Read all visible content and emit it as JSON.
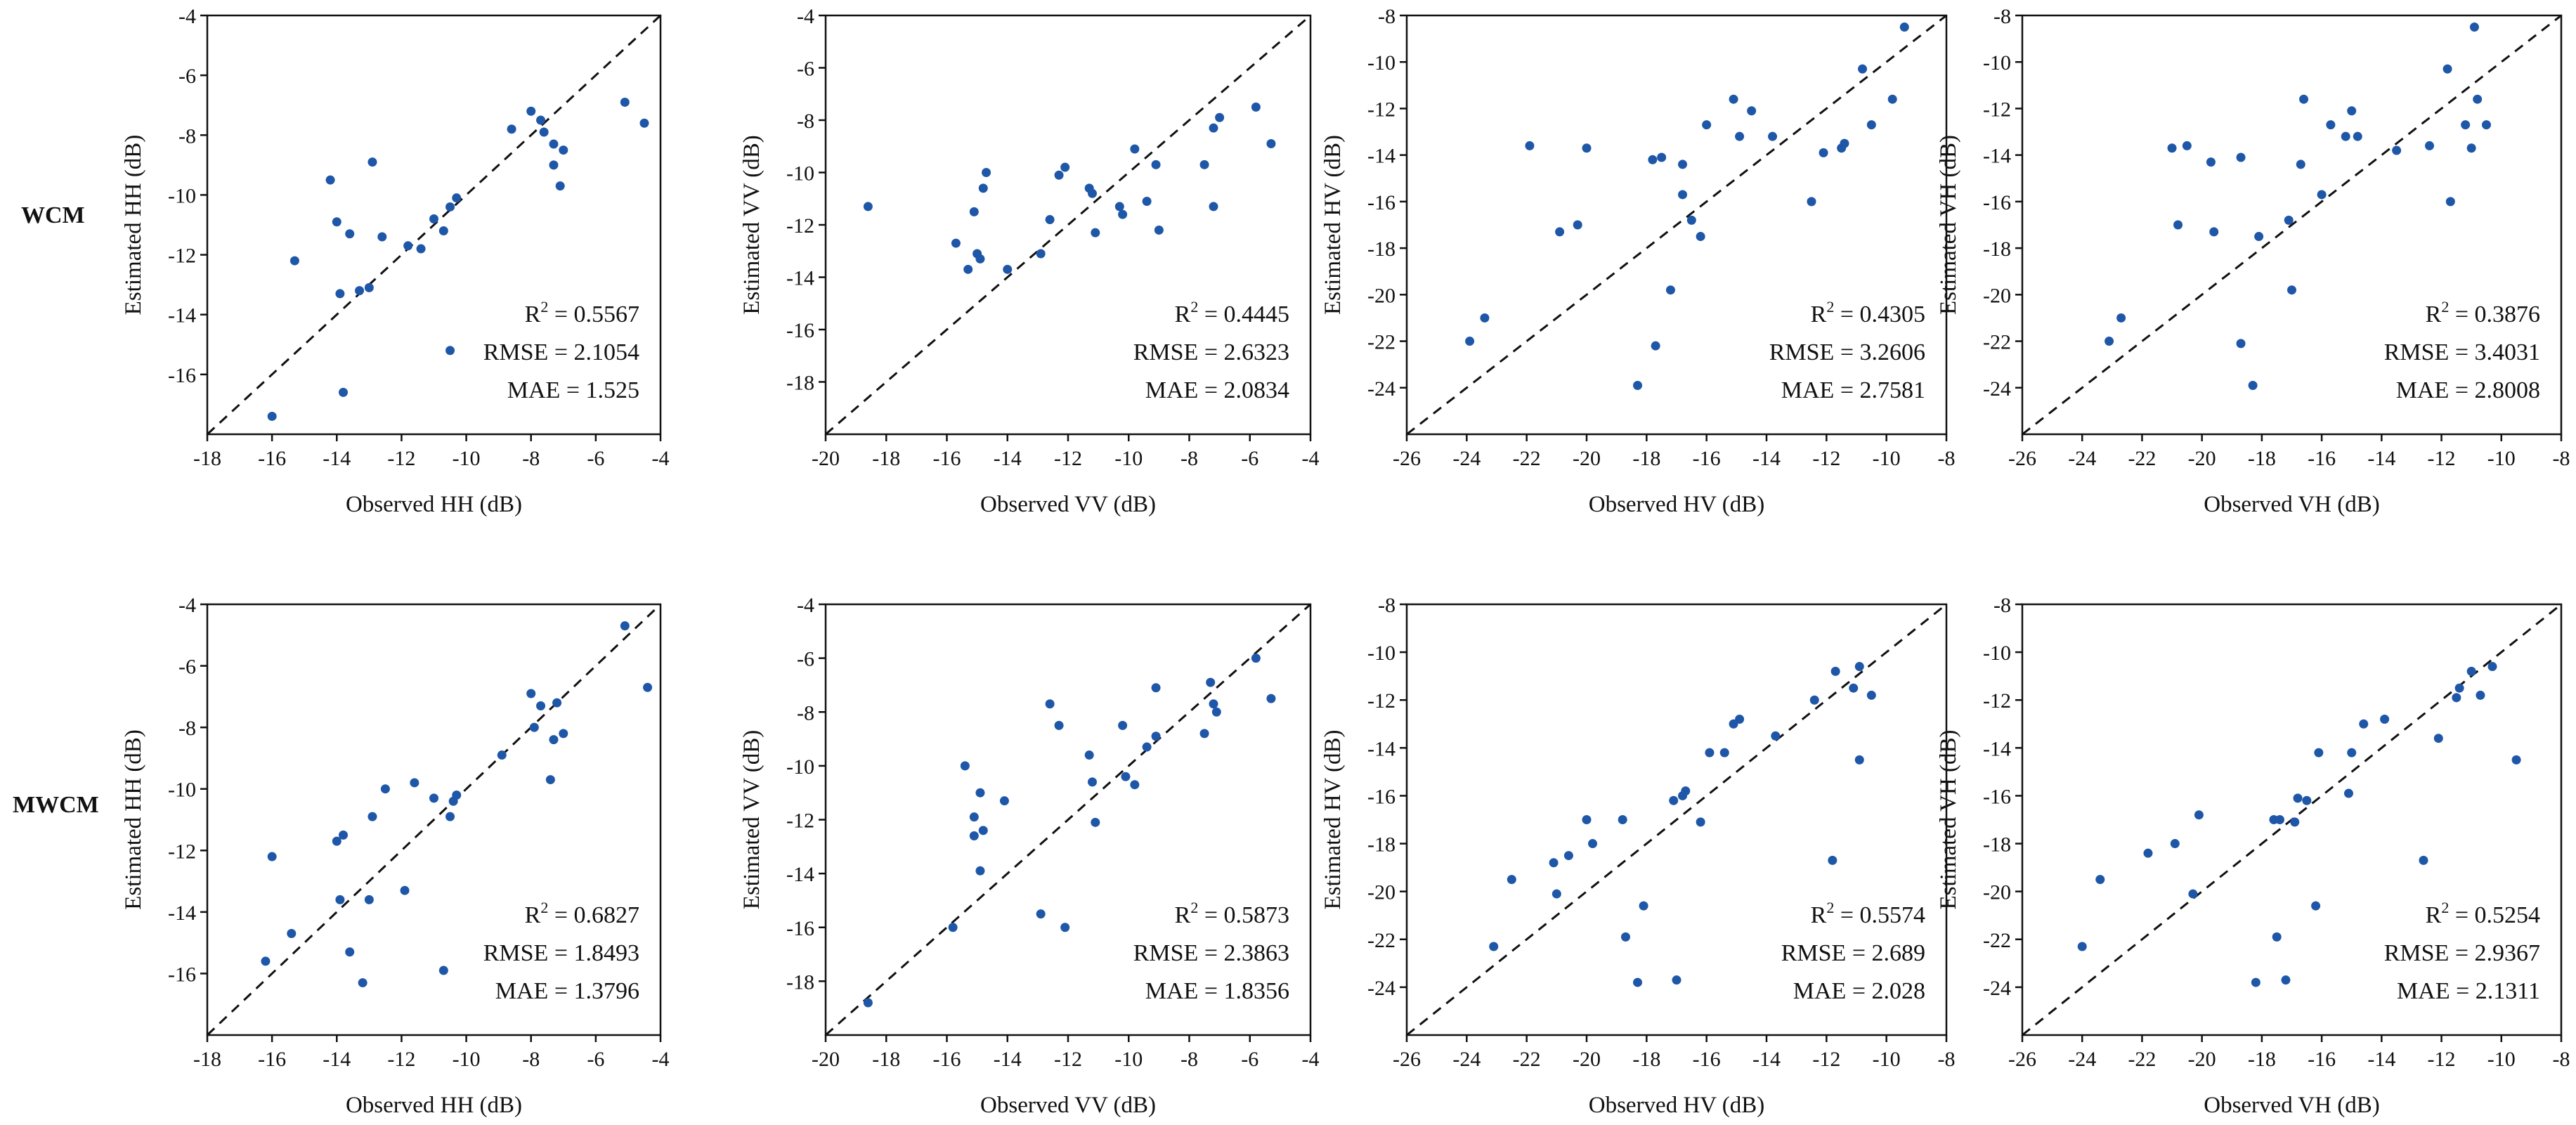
{
  "row_labels": [
    "WCM",
    "MWCM"
  ],
  "style": {
    "point_color": "#1f57a8",
    "axis_color": "#111111",
    "line_color": "#111111"
  },
  "chart_data": [
    {
      "type": "scatter",
      "title": "",
      "row": "WCM",
      "col": 0,
      "xlabel": "Observed HH (dB)",
      "ylabel": "Estimated HH (dB)",
      "xlim": [
        -18,
        -4
      ],
      "ylim": [
        -18,
        -4
      ],
      "xticks": [
        -18,
        -16,
        -14,
        -12,
        -10,
        -8,
        -6,
        -4
      ],
      "yticks": [
        -16,
        -14,
        -12,
        -10,
        -8,
        -6,
        -4
      ],
      "reference_line": "1:1 dashed",
      "stats": {
        "r2": "0.5567",
        "rmse": "RMSE = 2.1054",
        "mae": "MAE = 1.525"
      },
      "points": [
        [
          -16.0,
          -17.4
        ],
        [
          -15.3,
          -12.2
        ],
        [
          -14.2,
          -9.5
        ],
        [
          -14.0,
          -10.9
        ],
        [
          -13.9,
          -13.3
        ],
        [
          -13.8,
          -16.6
        ],
        [
          -13.6,
          -11.3
        ],
        [
          -13.3,
          -13.2
        ],
        [
          -13.0,
          -13.1
        ],
        [
          -12.9,
          -8.9
        ],
        [
          -12.6,
          -11.4
        ],
        [
          -11.8,
          -11.7
        ],
        [
          -11.4,
          -11.8
        ],
        [
          -11.0,
          -10.8
        ],
        [
          -10.7,
          -11.2
        ],
        [
          -10.5,
          -10.4
        ],
        [
          -10.5,
          -15.2
        ],
        [
          -10.3,
          -10.1
        ],
        [
          -8.6,
          -7.8
        ],
        [
          -8.0,
          -7.2
        ],
        [
          -7.7,
          -7.5
        ],
        [
          -7.6,
          -7.9
        ],
        [
          -7.3,
          -8.3
        ],
        [
          -7.3,
          -9.0
        ],
        [
          -7.1,
          -9.7
        ],
        [
          -7.0,
          -8.5
        ],
        [
          -5.1,
          -6.9
        ],
        [
          -4.5,
          -7.6
        ]
      ]
    },
    {
      "type": "scatter",
      "title": "",
      "row": "WCM",
      "col": 1,
      "xlabel": "Observed VV (dB)",
      "ylabel": "Estimated VV (dB)",
      "xlim": [
        -20,
        -4
      ],
      "ylim": [
        -20,
        -4
      ],
      "xticks": [
        -20,
        -18,
        -16,
        -14,
        -12,
        -10,
        -8,
        -6,
        -4
      ],
      "yticks": [
        -18,
        -16,
        -14,
        -12,
        -10,
        -8,
        -6,
        -4
      ],
      "reference_line": "1:1 dashed",
      "stats": {
        "r2": "0.4445",
        "rmse": "RMSE = 2.6323",
        "mae": "MAE = 2.0834"
      },
      "points": [
        [
          -18.6,
          -11.3
        ],
        [
          -15.7,
          -12.7
        ],
        [
          -15.3,
          -13.7
        ],
        [
          -15.1,
          -11.5
        ],
        [
          -15.0,
          -13.1
        ],
        [
          -14.9,
          -13.3
        ],
        [
          -14.8,
          -10.6
        ],
        [
          -14.7,
          -10.0
        ],
        [
          -14.0,
          -13.7
        ],
        [
          -12.9,
          -13.1
        ],
        [
          -12.6,
          -11.8
        ],
        [
          -12.3,
          -10.1
        ],
        [
          -12.1,
          -9.8
        ],
        [
          -11.3,
          -10.6
        ],
        [
          -11.2,
          -10.8
        ],
        [
          -11.1,
          -12.3
        ],
        [
          -10.3,
          -11.3
        ],
        [
          -10.2,
          -11.6
        ],
        [
          -9.8,
          -9.1
        ],
        [
          -9.4,
          -11.1
        ],
        [
          -9.1,
          -9.7
        ],
        [
          -9.0,
          -12.2
        ],
        [
          -7.5,
          -9.7
        ],
        [
          -7.2,
          -8.3
        ],
        [
          -7.2,
          -11.3
        ],
        [
          -7.0,
          -7.9
        ],
        [
          -5.8,
          -7.5
        ],
        [
          -5.3,
          -8.9
        ]
      ]
    },
    {
      "type": "scatter",
      "title": "",
      "row": "WCM",
      "col": 2,
      "xlabel": "Observed HV (dB)",
      "ylabel": "Estimated HV (dB)",
      "xlim": [
        -26,
        -8
      ],
      "ylim": [
        -26,
        -8
      ],
      "xticks": [
        -26,
        -24,
        -22,
        -20,
        -18,
        -16,
        -14,
        -12,
        -10,
        -8
      ],
      "yticks": [
        -24,
        -22,
        -20,
        -18,
        -16,
        -14,
        -12,
        -10,
        -8
      ],
      "reference_line": "1:1 dashed",
      "stats": {
        "r2": "0.4305",
        "rmse": "RMSE = 3.2606",
        "mae": "MAE = 2.7581"
      },
      "points": [
        [
          -23.9,
          -22.0
        ],
        [
          -23.4,
          -21.0
        ],
        [
          -21.9,
          -13.6
        ],
        [
          -20.9,
          -17.3
        ],
        [
          -20.3,
          -17.0
        ],
        [
          -20.0,
          -13.7
        ],
        [
          -18.3,
          -23.9
        ],
        [
          -17.8,
          -14.2
        ],
        [
          -17.7,
          -22.2
        ],
        [
          -17.5,
          -14.1
        ],
        [
          -17.2,
          -19.8
        ],
        [
          -16.8,
          -14.4
        ],
        [
          -16.8,
          -15.7
        ],
        [
          -16.5,
          -16.8
        ],
        [
          -16.2,
          -17.5
        ],
        [
          -16.0,
          -12.7
        ],
        [
          -15.1,
          -11.6
        ],
        [
          -14.9,
          -13.2
        ],
        [
          -14.5,
          -12.1
        ],
        [
          -13.8,
          -13.2
        ],
        [
          -12.5,
          -16.0
        ],
        [
          -12.1,
          -13.9
        ],
        [
          -11.5,
          -13.7
        ],
        [
          -11.4,
          -13.5
        ],
        [
          -10.8,
          -10.3
        ],
        [
          -10.5,
          -12.7
        ],
        [
          -9.8,
          -11.6
        ],
        [
          -9.4,
          -8.5
        ]
      ]
    },
    {
      "type": "scatter",
      "title": "",
      "row": "WCM",
      "col": 3,
      "xlabel": "Observed VH (dB)",
      "ylabel": "Estimated VH (dB)",
      "xlim": [
        -26,
        -8
      ],
      "ylim": [
        -26,
        -8
      ],
      "xticks": [
        -26,
        -24,
        -22,
        -20,
        -18,
        -16,
        -14,
        -12,
        -10,
        -8
      ],
      "yticks": [
        -24,
        -22,
        -20,
        -18,
        -16,
        -14,
        -12,
        -10,
        -8
      ],
      "reference_line": "1:1 dashed",
      "stats": {
        "r2": "0.3876",
        "rmse": "RMSE = 3.4031",
        "mae": "MAE = 2.8008"
      },
      "points": [
        [
          -23.1,
          -22.0
        ],
        [
          -22.7,
          -21.0
        ],
        [
          -21.0,
          -13.7
        ],
        [
          -20.8,
          -17.0
        ],
        [
          -20.5,
          -13.6
        ],
        [
          -19.7,
          -14.3
        ],
        [
          -19.6,
          -17.3
        ],
        [
          -18.7,
          -14.1
        ],
        [
          -18.7,
          -22.1
        ],
        [
          -18.3,
          -23.9
        ],
        [
          -18.1,
          -17.5
        ],
        [
          -17.1,
          -16.8
        ],
        [
          -17.0,
          -19.8
        ],
        [
          -16.6,
          -11.6
        ],
        [
          -16.7,
          -14.4
        ],
        [
          -16.0,
          -15.7
        ],
        [
          -15.7,
          -12.7
        ],
        [
          -15.2,
          -13.2
        ],
        [
          -15.0,
          -12.1
        ],
        [
          -14.8,
          -13.2
        ],
        [
          -13.5,
          -13.8
        ],
        [
          -12.4,
          -13.6
        ],
        [
          -11.8,
          -10.3
        ],
        [
          -11.7,
          -16.0
        ],
        [
          -11.2,
          -12.7
        ],
        [
          -11.0,
          -13.7
        ],
        [
          -10.9,
          -8.5
        ],
        [
          -10.8,
          -11.6
        ],
        [
          -10.5,
          -12.7
        ]
      ]
    },
    {
      "type": "scatter",
      "title": "",
      "row": "MWCM",
      "col": 0,
      "xlabel": "Observed HH (dB)",
      "ylabel": "Estimated HH (dB)",
      "xlim": [
        -18,
        -4
      ],
      "ylim": [
        -18,
        -4
      ],
      "xticks": [
        -18,
        -16,
        -14,
        -12,
        -10,
        -8,
        -6,
        -4
      ],
      "yticks": [
        -16,
        -14,
        -12,
        -10,
        -8,
        -6,
        -4
      ],
      "reference_line": "1:1 dashed",
      "stats": {
        "r2": "0.6827",
        "rmse": "RMSE = 1.8493",
        "mae": "MAE = 1.3796"
      },
      "points": [
        [
          -16.2,
          -15.6
        ],
        [
          -16.0,
          -12.2
        ],
        [
          -15.4,
          -14.7
        ],
        [
          -14.0,
          -11.7
        ],
        [
          -13.9,
          -13.6
        ],
        [
          -13.8,
          -11.5
        ],
        [
          -13.6,
          -15.3
        ],
        [
          -13.2,
          -16.3
        ],
        [
          -13.0,
          -13.6
        ],
        [
          -12.9,
          -10.9
        ],
        [
          -12.5,
          -10.0
        ],
        [
          -11.9,
          -13.3
        ],
        [
          -11.6,
          -9.8
        ],
        [
          -11.0,
          -10.3
        ],
        [
          -10.7,
          -15.9
        ],
        [
          -10.5,
          -10.9
        ],
        [
          -10.4,
          -10.4
        ],
        [
          -10.3,
          -10.2
        ],
        [
          -8.9,
          -8.9
        ],
        [
          -8.0,
          -6.9
        ],
        [
          -7.9,
          -8.0
        ],
        [
          -7.7,
          -7.3
        ],
        [
          -7.4,
          -9.7
        ],
        [
          -7.3,
          -8.4
        ],
        [
          -7.2,
          -7.2
        ],
        [
          -7.0,
          -8.2
        ],
        [
          -5.1,
          -4.7
        ],
        [
          -4.4,
          -6.7
        ]
      ]
    },
    {
      "type": "scatter",
      "title": "",
      "row": "MWCM",
      "col": 1,
      "xlabel": "Observed VV (dB)",
      "ylabel": "Estimated VV (dB)",
      "xlim": [
        -20,
        -4
      ],
      "ylim": [
        -20,
        -4
      ],
      "xticks": [
        -20,
        -18,
        -16,
        -14,
        -12,
        -10,
        -8,
        -6,
        -4
      ],
      "yticks": [
        -18,
        -16,
        -14,
        -12,
        -10,
        -8,
        -6,
        -4
      ],
      "reference_line": "1:1 dashed",
      "stats": {
        "r2": "0.5873",
        "rmse": "RMSE = 2.3863",
        "mae": "MAE = 1.8356"
      },
      "points": [
        [
          -18.6,
          -18.8
        ],
        [
          -15.8,
          -16.0
        ],
        [
          -15.4,
          -10.0
        ],
        [
          -15.1,
          -11.9
        ],
        [
          -15.1,
          -12.6
        ],
        [
          -14.9,
          -11.0
        ],
        [
          -14.9,
          -13.9
        ],
        [
          -14.8,
          -12.4
        ],
        [
          -14.1,
          -11.3
        ],
        [
          -12.9,
          -15.5
        ],
        [
          -12.6,
          -7.7
        ],
        [
          -12.3,
          -8.5
        ],
        [
          -12.1,
          -16.0
        ],
        [
          -11.3,
          -9.6
        ],
        [
          -11.2,
          -10.6
        ],
        [
          -11.1,
          -12.1
        ],
        [
          -10.2,
          -8.5
        ],
        [
          -10.1,
          -10.4
        ],
        [
          -9.8,
          -10.7
        ],
        [
          -9.4,
          -9.3
        ],
        [
          -9.1,
          -7.1
        ],
        [
          -9.1,
          -8.9
        ],
        [
          -7.5,
          -8.8
        ],
        [
          -7.3,
          -6.9
        ],
        [
          -7.2,
          -7.7
        ],
        [
          -7.1,
          -8.0
        ],
        [
          -5.8,
          -6.0
        ],
        [
          -5.3,
          -7.5
        ]
      ]
    },
    {
      "type": "scatter",
      "title": "",
      "row": "MWCM",
      "col": 2,
      "xlabel": "Observed HV (dB)",
      "ylabel": "Estimated HV (dB)",
      "xlim": [
        -26,
        -8
      ],
      "ylim": [
        -26,
        -8
      ],
      "xticks": [
        -26,
        -24,
        -22,
        -20,
        -18,
        -16,
        -14,
        -12,
        -10,
        -8
      ],
      "yticks": [
        -24,
        -22,
        -20,
        -18,
        -16,
        -14,
        -12,
        -10,
        -8
      ],
      "reference_line": "1:1 dashed",
      "stats": {
        "r2": "0.5574",
        "rmse": "RMSE = 2.689",
        "mae": "MAE = 2.028"
      },
      "points": [
        [
          -23.1,
          -22.3
        ],
        [
          -22.5,
          -19.5
        ],
        [
          -21.1,
          -18.8
        ],
        [
          -21.0,
          -20.1
        ],
        [
          -20.6,
          -18.5
        ],
        [
          -20.0,
          -17.0
        ],
        [
          -19.8,
          -18.0
        ],
        [
          -18.8,
          -17.0
        ],
        [
          -18.7,
          -21.9
        ],
        [
          -18.3,
          -23.8
        ],
        [
          -18.1,
          -20.6
        ],
        [
          -17.1,
          -16.2
        ],
        [
          -17.0,
          -23.7
        ],
        [
          -16.8,
          -16.0
        ],
        [
          -16.7,
          -15.8
        ],
        [
          -16.2,
          -17.1
        ],
        [
          -15.9,
          -14.2
        ],
        [
          -15.4,
          -14.2
        ],
        [
          -15.1,
          -13.0
        ],
        [
          -14.9,
          -12.8
        ],
        [
          -13.7,
          -13.5
        ],
        [
          -12.4,
          -12.0
        ],
        [
          -11.8,
          -18.7
        ],
        [
          -11.7,
          -10.8
        ],
        [
          -11.1,
          -11.5
        ],
        [
          -10.9,
          -10.6
        ],
        [
          -10.9,
          -14.5
        ],
        [
          -10.5,
          -11.8
        ]
      ]
    },
    {
      "type": "scatter",
      "title": "",
      "row": "MWCM",
      "col": 3,
      "xlabel": "Observed VH (dB)",
      "ylabel": "Estimated VH (dB)",
      "xlim": [
        -26,
        -8
      ],
      "ylim": [
        -26,
        -8
      ],
      "xticks": [
        -26,
        -24,
        -22,
        -20,
        -18,
        -16,
        -14,
        -12,
        -10,
        -8
      ],
      "yticks": [
        -24,
        -22,
        -20,
        -18,
        -16,
        -14,
        -12,
        -10,
        -8
      ],
      "reference_line": "1:1 dashed",
      "stats": {
        "r2": "0.5254",
        "rmse": "RMSE = 2.9367",
        "mae": "MAE = 2.1311"
      },
      "points": [
        [
          -24.0,
          -22.3
        ],
        [
          -23.4,
          -19.5
        ],
        [
          -21.8,
          -18.4
        ],
        [
          -20.9,
          -18.0
        ],
        [
          -20.3,
          -20.1
        ],
        [
          -20.1,
          -16.8
        ],
        [
          -18.2,
          -23.8
        ],
        [
          -17.6,
          -17.0
        ],
        [
          -17.5,
          -21.9
        ],
        [
          -17.4,
          -17.0
        ],
        [
          -17.2,
          -23.7
        ],
        [
          -16.9,
          -17.1
        ],
        [
          -16.8,
          -16.1
        ],
        [
          -16.5,
          -16.2
        ],
        [
          -16.2,
          -20.6
        ],
        [
          -16.1,
          -14.2
        ],
        [
          -15.1,
          -15.9
        ],
        [
          -15.0,
          -14.2
        ],
        [
          -14.6,
          -13.0
        ],
        [
          -13.9,
          -12.8
        ],
        [
          -12.6,
          -18.7
        ],
        [
          -12.1,
          -13.6
        ],
        [
          -11.5,
          -11.9
        ],
        [
          -11.4,
          -11.5
        ],
        [
          -11.0,
          -10.8
        ],
        [
          -10.7,
          -11.8
        ],
        [
          -10.3,
          -10.6
        ],
        [
          -9.5,
          -14.5
        ]
      ]
    }
  ]
}
